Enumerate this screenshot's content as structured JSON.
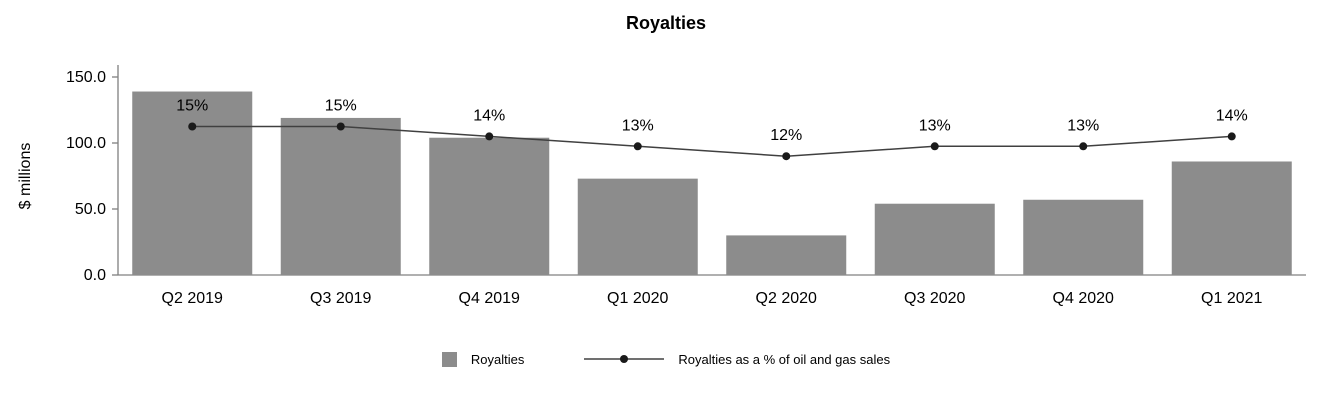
{
  "chart_data": {
    "type": "bar",
    "title": "Royalties",
    "ylabel": "$ millions",
    "xlabel": "",
    "categories": [
      "Q2 2019",
      "Q3 2019",
      "Q4 2019",
      "Q1 2020",
      "Q2 2020",
      "Q3 2020",
      "Q4 2020",
      "Q1 2021"
    ],
    "series": [
      {
        "name": "Royalties",
        "type": "bar",
        "values": [
          139,
          119,
          104,
          73,
          30,
          54,
          57,
          86
        ]
      },
      {
        "name": "Royalties as a % of oil and gas sales",
        "type": "line",
        "values": [
          15,
          15,
          14,
          13,
          12,
          13,
          13,
          14
        ],
        "labels": [
          "15%",
          "15%",
          "14%",
          "13%",
          "12%",
          "13%",
          "13%",
          "14%"
        ]
      }
    ],
    "ylim": [
      0,
      150
    ],
    "y_ticks": [
      0,
      50,
      100,
      150
    ],
    "secondary_ylim": [
      0,
      20
    ],
    "grid": "off",
    "legend_position": "bottom",
    "colors": {
      "bar": "#8c8c8c",
      "line": "#404040",
      "marker": "#1a1a1a",
      "axis": "#808080",
      "text": "#000000"
    }
  }
}
